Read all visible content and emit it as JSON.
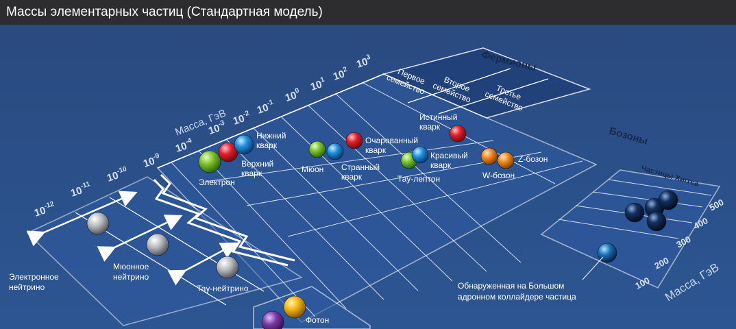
{
  "title": "Массы элементарных частиц (Стандартная модель)",
  "axes": {
    "mass_label": "Масса, ГэВ",
    "higgs_mass_label": "Масса, ГэВ",
    "mass_ticks": [
      {
        "base": "10",
        "exp": "-12"
      },
      {
        "base": "10",
        "exp": "-11"
      },
      {
        "base": "10",
        "exp": "-10"
      },
      {
        "base": "10",
        "exp": "-9"
      },
      {
        "base": "10",
        "exp": "-4"
      },
      {
        "base": "10",
        "exp": "-3"
      },
      {
        "base": "10",
        "exp": "-2"
      },
      {
        "base": "10",
        "exp": "-1"
      },
      {
        "base": "10",
        "exp": "0"
      },
      {
        "base": "10",
        "exp": "1"
      },
      {
        "base": "10",
        "exp": "2"
      },
      {
        "base": "10",
        "exp": "3"
      }
    ],
    "higgs_ticks": [
      "100",
      "200",
      "300",
      "400",
      "500"
    ]
  },
  "groups": {
    "fermions": "Фермионы",
    "bosons": "Бозоны",
    "families": [
      [
        "Первое",
        "семейство"
      ],
      [
        "Второе",
        "семейство"
      ],
      [
        "Третье",
        "семейство"
      ]
    ],
    "higgs": "Частицы Хиггса"
  },
  "labels": {
    "electron": "Электрон",
    "down_quark": [
      "Нижний",
      "кварк"
    ],
    "up_quark": [
      "Верхний",
      "кварк"
    ],
    "muon": "Мюон",
    "charm_quark": [
      "Очарованный",
      "кварк"
    ],
    "strange_quark": [
      "Странный",
      "кварк"
    ],
    "top_quark": [
      "Истинный",
      "кварк"
    ],
    "bottom_quark": [
      "Красивый",
      "кварк"
    ],
    "tau_lepton": "Тау-лептон",
    "z_boson": "Z-бозон",
    "w_boson": "W-бозон",
    "electron_neutrino": [
      "Электронное",
      "нейтрино"
    ],
    "muon_neutrino": [
      "Мюонное",
      "нейтрино"
    ],
    "tau_neutrino": "Тау-нейтрино",
    "photon": "Фотон",
    "lhc_particle": [
      "Обнаруженная на Большом",
      "адронном коллайдере частица"
    ]
  },
  "colors": {
    "background": "#2b4f86",
    "title_bar": "#2d2d2f",
    "grid_line": "#ffffff",
    "lepton": "#7fc32c",
    "quark_red": "#e0202a",
    "quark_blue": "#1f8fdc",
    "boson_orange": "#f08a1c",
    "neutrino_gray": "#b4b6ba",
    "photon_yellow": "#f6b712",
    "gluon_purple": "#7a3aa0",
    "higgs_navy": "#14305c",
    "lhc_blue": "#1a6fb0"
  }
}
